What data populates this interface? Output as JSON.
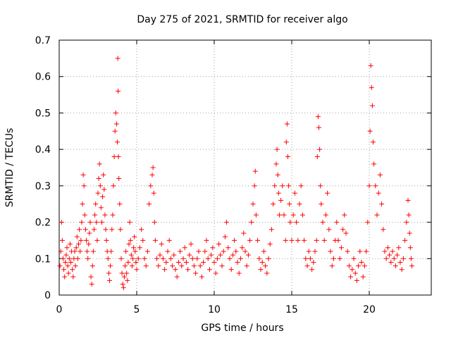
{
  "chart_data": {
    "type": "scatter",
    "title": "Day 275 of 2021, SRMTID for receiver algo",
    "xlabel": "GPS time / hours",
    "ylabel": "SRMTID / TECUs",
    "xlim": [
      0,
      24
    ],
    "ylim": [
      0,
      0.7
    ],
    "xticks": [
      0,
      5,
      10,
      15,
      20
    ],
    "xtick_labels": [
      "0",
      "5",
      "10",
      "15",
      "20"
    ],
    "yticks": [
      0,
      0.1,
      0.2,
      0.3,
      0.4,
      0.5,
      0.6,
      0.7
    ],
    "ytick_labels": [
      "0",
      "0.1",
      "0.2",
      "0.3",
      "0.4",
      "0.5",
      "0.6",
      "0.7"
    ],
    "grid": true,
    "marker": "+",
    "marker_color": "#ff0000",
    "series": [
      {
        "name": "SRMTID",
        "points": [
          [
            0.05,
            0.08
          ],
          [
            0.1,
            0.12
          ],
          [
            0.15,
            0.2
          ],
          [
            0.2,
            0.15
          ],
          [
            0.25,
            0.1
          ],
          [
            0.3,
            0.07
          ],
          [
            0.35,
            0.05
          ],
          [
            0.4,
            0.09
          ],
          [
            0.45,
            0.11
          ],
          [
            0.5,
            0.13
          ],
          [
            0.55,
            0.08
          ],
          [
            0.6,
            0.06
          ],
          [
            0.65,
            0.1
          ],
          [
            0.7,
            0.14
          ],
          [
            0.75,
            0.09
          ],
          [
            0.8,
            0.12
          ],
          [
            0.85,
            0.07
          ],
          [
            0.9,
            0.05
          ],
          [
            0.95,
            0.1
          ],
          [
            1.0,
            0.12
          ],
          [
            1.05,
            0.08
          ],
          [
            1.1,
            0.13
          ],
          [
            1.15,
            0.16
          ],
          [
            1.2,
            0.1
          ],
          [
            1.25,
            0.14
          ],
          [
            1.3,
            0.18
          ],
          [
            1.35,
            0.12
          ],
          [
            1.4,
            0.15
          ],
          [
            1.45,
            0.2
          ],
          [
            1.5,
            0.25
          ],
          [
            1.55,
            0.33
          ],
          [
            1.6,
            0.3
          ],
          [
            1.65,
            0.22
          ],
          [
            1.7,
            0.18
          ],
          [
            1.75,
            0.15
          ],
          [
            1.8,
            0.12
          ],
          [
            1.85,
            0.1
          ],
          [
            1.9,
            0.14
          ],
          [
            1.95,
            0.17
          ],
          [
            2.0,
            0.2
          ],
          [
            2.05,
            0.05
          ],
          [
            2.1,
            0.03
          ],
          [
            2.15,
            0.08
          ],
          [
            2.2,
            0.12
          ],
          [
            2.25,
            0.18
          ],
          [
            2.3,
            0.22
          ],
          [
            2.35,
            0.25
          ],
          [
            2.4,
            0.2
          ],
          [
            2.45,
            0.15
          ],
          [
            2.5,
            0.28
          ],
          [
            2.55,
            0.32
          ],
          [
            2.6,
            0.36
          ],
          [
            2.65,
            0.3
          ],
          [
            2.7,
            0.24
          ],
          [
            2.75,
            0.2
          ],
          [
            2.8,
            0.27
          ],
          [
            2.85,
            0.33
          ],
          [
            2.9,
            0.29
          ],
          [
            2.95,
            0.22
          ],
          [
            3.0,
            0.18
          ],
          [
            3.05,
            0.15
          ],
          [
            3.1,
            0.12
          ],
          [
            3.15,
            0.1
          ],
          [
            3.2,
            0.06
          ],
          [
            3.25,
            0.04
          ],
          [
            3.3,
            0.08
          ],
          [
            3.35,
            0.12
          ],
          [
            3.4,
            0.18
          ],
          [
            3.45,
            0.22
          ],
          [
            3.5,
            0.3
          ],
          [
            3.55,
            0.38
          ],
          [
            3.6,
            0.45
          ],
          [
            3.65,
            0.5
          ],
          [
            3.7,
            0.47
          ],
          [
            3.75,
            0.42
          ],
          [
            3.78,
            0.65
          ],
          [
            3.8,
            0.56
          ],
          [
            3.82,
            0.38
          ],
          [
            3.85,
            0.32
          ],
          [
            3.9,
            0.25
          ],
          [
            3.95,
            0.18
          ],
          [
            4.0,
            0.1
          ],
          [
            4.05,
            0.06
          ],
          [
            4.1,
            0.03
          ],
          [
            4.15,
            0.02
          ],
          [
            4.2,
            0.05
          ],
          [
            4.25,
            0.08
          ],
          [
            4.3,
            0.12
          ],
          [
            4.35,
            0.06
          ],
          [
            4.4,
            0.04
          ],
          [
            4.45,
            0.09
          ],
          [
            4.5,
            0.14
          ],
          [
            4.55,
            0.2
          ],
          [
            4.6,
            0.15
          ],
          [
            4.65,
            0.11
          ],
          [
            4.7,
            0.08
          ],
          [
            4.75,
            0.1
          ],
          [
            4.8,
            0.13
          ],
          [
            4.85,
            0.16
          ],
          [
            4.9,
            0.12
          ],
          [
            4.95,
            0.09
          ],
          [
            5.0,
            0.07
          ],
          [
            5.1,
            0.1
          ],
          [
            5.2,
            0.13
          ],
          [
            5.3,
            0.18
          ],
          [
            5.4,
            0.15
          ],
          [
            5.5,
            0.1
          ],
          [
            5.6,
            0.08
          ],
          [
            5.7,
            0.12
          ],
          [
            5.8,
            0.25
          ],
          [
            5.9,
            0.3
          ],
          [
            6.0,
            0.33
          ],
          [
            6.05,
            0.35
          ],
          [
            6.1,
            0.28
          ],
          [
            6.15,
            0.2
          ],
          [
            6.2,
            0.15
          ],
          [
            6.3,
            0.1
          ],
          [
            6.4,
            0.08
          ],
          [
            6.5,
            0.11
          ],
          [
            6.6,
            0.14
          ],
          [
            6.7,
            0.1
          ],
          [
            6.8,
            0.07
          ],
          [
            6.9,
            0.09
          ],
          [
            7.0,
            0.12
          ],
          [
            7.1,
            0.15
          ],
          [
            7.2,
            0.1
          ],
          [
            7.3,
            0.08
          ],
          [
            7.4,
            0.11
          ],
          [
            7.5,
            0.07
          ],
          [
            7.6,
            0.05
          ],
          [
            7.7,
            0.09
          ],
          [
            7.8,
            0.12
          ],
          [
            7.9,
            0.08
          ],
          [
            8.0,
            0.1
          ],
          [
            8.1,
            0.13
          ],
          [
            8.2,
            0.09
          ],
          [
            8.3,
            0.07
          ],
          [
            8.4,
            0.11
          ],
          [
            8.5,
            0.14
          ],
          [
            8.6,
            0.1
          ],
          [
            8.7,
            0.08
          ],
          [
            8.8,
            0.06
          ],
          [
            8.9,
            0.1
          ],
          [
            9.0,
            0.12
          ],
          [
            9.1,
            0.08
          ],
          [
            9.2,
            0.05
          ],
          [
            9.3,
            0.09
          ],
          [
            9.4,
            0.12
          ],
          [
            9.5,
            0.15
          ],
          [
            9.6,
            0.1
          ],
          [
            9.7,
            0.07
          ],
          [
            9.8,
            0.11
          ],
          [
            9.9,
            0.13
          ],
          [
            10.0,
            0.09
          ],
          [
            10.1,
            0.06
          ],
          [
            10.2,
            0.1
          ],
          [
            10.3,
            0.14
          ],
          [
            10.4,
            0.11
          ],
          [
            10.5,
            0.08
          ],
          [
            10.6,
            0.12
          ],
          [
            10.7,
            0.16
          ],
          [
            10.8,
            0.2
          ],
          [
            10.9,
            0.13
          ],
          [
            11.0,
            0.1
          ],
          [
            11.1,
            0.07
          ],
          [
            11.2,
            0.11
          ],
          [
            11.3,
            0.15
          ],
          [
            11.4,
            0.12
          ],
          [
            11.5,
            0.09
          ],
          [
            11.6,
            0.06
          ],
          [
            11.7,
            0.1
          ],
          [
            11.8,
            0.13
          ],
          [
            11.9,
            0.17
          ],
          [
            12.0,
            0.12
          ],
          [
            12.1,
            0.08
          ],
          [
            12.2,
            0.11
          ],
          [
            12.3,
            0.15
          ],
          [
            12.4,
            0.2
          ],
          [
            12.5,
            0.25
          ],
          [
            12.6,
            0.3
          ],
          [
            12.65,
            0.34
          ],
          [
            12.7,
            0.22
          ],
          [
            12.8,
            0.15
          ],
          [
            12.9,
            0.1
          ],
          [
            13.0,
            0.07
          ],
          [
            13.1,
            0.09
          ],
          [
            13.2,
            0.12
          ],
          [
            13.3,
            0.08
          ],
          [
            13.4,
            0.06
          ],
          [
            13.5,
            0.1
          ],
          [
            13.6,
            0.14
          ],
          [
            13.7,
            0.18
          ],
          [
            13.8,
            0.25
          ],
          [
            13.9,
            0.3
          ],
          [
            14.0,
            0.36
          ],
          [
            14.05,
            0.4
          ],
          [
            14.1,
            0.33
          ],
          [
            14.15,
            0.28
          ],
          [
            14.2,
            0.22
          ],
          [
            14.3,
            0.26
          ],
          [
            14.4,
            0.3
          ],
          [
            14.5,
            0.22
          ],
          [
            14.6,
            0.15
          ],
          [
            14.65,
            0.42
          ],
          [
            14.7,
            0.47
          ],
          [
            14.75,
            0.38
          ],
          [
            14.8,
            0.3
          ],
          [
            14.85,
            0.25
          ],
          [
            14.9,
            0.2
          ],
          [
            15.0,
            0.15
          ],
          [
            15.1,
            0.22
          ],
          [
            15.2,
            0.28
          ],
          [
            15.3,
            0.2
          ],
          [
            15.4,
            0.15
          ],
          [
            15.5,
            0.25
          ],
          [
            15.6,
            0.3
          ],
          [
            15.7,
            0.22
          ],
          [
            15.8,
            0.15
          ],
          [
            15.9,
            0.1
          ],
          [
            16.0,
            0.08
          ],
          [
            16.1,
            0.12
          ],
          [
            16.2,
            0.1
          ],
          [
            16.3,
            0.07
          ],
          [
            16.4,
            0.09
          ],
          [
            16.5,
            0.12
          ],
          [
            16.6,
            0.15
          ],
          [
            16.65,
            0.38
          ],
          [
            16.7,
            0.49
          ],
          [
            16.75,
            0.46
          ],
          [
            16.8,
            0.4
          ],
          [
            16.85,
            0.3
          ],
          [
            16.9,
            0.25
          ],
          [
            17.0,
            0.2
          ],
          [
            17.1,
            0.15
          ],
          [
            17.2,
            0.22
          ],
          [
            17.3,
            0.28
          ],
          [
            17.4,
            0.18
          ],
          [
            17.5,
            0.12
          ],
          [
            17.6,
            0.08
          ],
          [
            17.7,
            0.1
          ],
          [
            17.8,
            0.15
          ],
          [
            17.9,
            0.2
          ],
          [
            18.0,
            0.15
          ],
          [
            18.1,
            0.1
          ],
          [
            18.2,
            0.13
          ],
          [
            18.3,
            0.18
          ],
          [
            18.4,
            0.22
          ],
          [
            18.5,
            0.17
          ],
          [
            18.6,
            0.12
          ],
          [
            18.7,
            0.08
          ],
          [
            18.8,
            0.05
          ],
          [
            18.9,
            0.07
          ],
          [
            19.0,
            0.1
          ],
          [
            19.1,
            0.06
          ],
          [
            19.2,
            0.04
          ],
          [
            19.3,
            0.08
          ],
          [
            19.4,
            0.12
          ],
          [
            19.5,
            0.09
          ],
          [
            19.6,
            0.05
          ],
          [
            19.7,
            0.08
          ],
          [
            19.8,
            0.12
          ],
          [
            19.9,
            0.2
          ],
          [
            20.0,
            0.3
          ],
          [
            20.05,
            0.45
          ],
          [
            20.1,
            0.63
          ],
          [
            20.15,
            0.57
          ],
          [
            20.2,
            0.52
          ],
          [
            20.25,
            0.42
          ],
          [
            20.3,
            0.36
          ],
          [
            20.4,
            0.3
          ],
          [
            20.5,
            0.22
          ],
          [
            20.6,
            0.28
          ],
          [
            20.7,
            0.33
          ],
          [
            20.8,
            0.25
          ],
          [
            20.9,
            0.18
          ],
          [
            21.0,
            0.12
          ],
          [
            21.1,
            0.1
          ],
          [
            21.2,
            0.13
          ],
          [
            21.3,
            0.11
          ],
          [
            21.4,
            0.09
          ],
          [
            21.5,
            0.12
          ],
          [
            21.6,
            0.1
          ],
          [
            21.7,
            0.08
          ],
          [
            21.8,
            0.11
          ],
          [
            21.9,
            0.13
          ],
          [
            22.0,
            0.09
          ],
          [
            22.1,
            0.07
          ],
          [
            22.2,
            0.1
          ],
          [
            22.3,
            0.15
          ],
          [
            22.4,
            0.2
          ],
          [
            22.5,
            0.26
          ],
          [
            22.55,
            0.22
          ],
          [
            22.6,
            0.17
          ],
          [
            22.65,
            0.13
          ],
          [
            22.7,
            0.1
          ],
          [
            22.75,
            0.08
          ]
        ]
      }
    ]
  }
}
